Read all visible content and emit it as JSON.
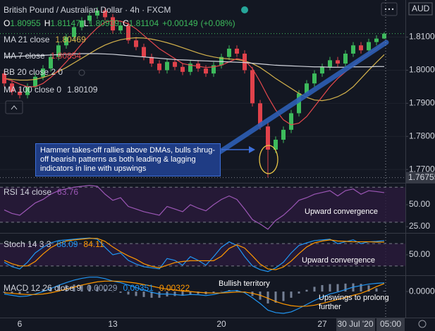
{
  "chart_data": [
    {
      "type": "candlestick",
      "title": "British Pound / Australian Dollar · 4h · FXCM",
      "currency": "AUD",
      "ohlc_labels": [
        "O",
        "H",
        "L",
        "C"
      ],
      "change": "+0.00149",
      "change_pct": "(+0.08%)",
      "hidden_indicator": "BB 20 close 2 0",
      "crosshair_date": "30 Jul '20",
      "crosshair_time": "05:00",
      "up_color": "#3dbb5c",
      "down_color": "#e0424b",
      "categories": [
        null,
        null,
        "6",
        null,
        null,
        null,
        null,
        null,
        null,
        null,
        null,
        null,
        null,
        null,
        "13",
        null,
        null,
        null,
        null,
        null,
        null,
        null,
        null,
        null,
        null,
        null,
        null,
        null,
        "20",
        null,
        null,
        null,
        null,
        null,
        null,
        null,
        null,
        null,
        null,
        null,
        null,
        "27",
        null,
        null,
        null,
        null,
        null,
        null,
        null,
        null
      ],
      "open": [
        1.799,
        1.796,
        1.7935,
        1.7925,
        1.795,
        1.798,
        1.8005,
        1.804,
        1.8075,
        1.81,
        1.813,
        1.815,
        1.8165,
        1.818,
        1.816,
        1.812,
        1.8135,
        1.809,
        1.807,
        1.804,
        1.802,
        1.8,
        1.8025,
        1.801,
        1.7995,
        1.802,
        1.8005,
        1.799,
        1.8015,
        1.804,
        1.8065,
        1.805,
        1.8,
        1.79,
        1.783,
        1.776,
        1.779,
        1.782,
        1.787,
        1.793,
        1.796,
        1.799,
        1.801,
        1.803,
        1.802,
        1.805,
        1.8075,
        1.806,
        1.8085,
        1.80955
      ],
      "high": [
        1.8,
        1.797,
        1.7945,
        1.796,
        1.799,
        1.8015,
        1.805,
        1.8085,
        1.811,
        1.814,
        1.816,
        1.8175,
        1.819,
        1.819,
        1.817,
        1.8145,
        1.8145,
        1.81,
        1.808,
        1.805,
        1.803,
        1.8035,
        1.8035,
        1.802,
        1.803,
        1.803,
        1.8015,
        1.8025,
        1.805,
        1.8075,
        1.8075,
        1.806,
        1.801,
        1.791,
        1.7845,
        1.78,
        1.783,
        1.788,
        1.794,
        1.797,
        1.8,
        1.802,
        1.804,
        1.804,
        1.806,
        1.8085,
        1.8085,
        1.8095,
        1.81055,
        1.81147
      ],
      "low": [
        1.795,
        1.7925,
        1.7915,
        1.7915,
        1.794,
        1.797,
        1.7995,
        1.803,
        1.8065,
        1.809,
        1.812,
        1.814,
        1.8155,
        1.815,
        1.811,
        1.811,
        1.808,
        1.806,
        1.803,
        1.801,
        1.799,
        1.799,
        1.8,
        1.7985,
        1.7985,
        1.7995,
        1.798,
        1.798,
        1.8005,
        1.803,
        1.804,
        1.799,
        1.789,
        1.782,
        1.76755,
        1.775,
        1.778,
        1.781,
        1.786,
        1.792,
        1.795,
        1.798,
        1.8,
        1.801,
        1.801,
        1.804,
        1.805,
        1.805,
        1.8075,
        1.80939
      ],
      "close": [
        1.796,
        1.7935,
        1.7925,
        1.795,
        1.798,
        1.8005,
        1.804,
        1.8075,
        1.81,
        1.813,
        1.815,
        1.8165,
        1.818,
        1.816,
        1.812,
        1.8135,
        1.809,
        1.807,
        1.804,
        1.802,
        1.8,
        1.8025,
        1.801,
        1.7995,
        1.802,
        1.8005,
        1.799,
        1.8015,
        1.804,
        1.8065,
        1.805,
        1.8,
        1.79,
        1.783,
        1.776,
        1.779,
        1.782,
        1.787,
        1.793,
        1.796,
        1.799,
        1.801,
        1.803,
        1.802,
        1.805,
        1.8075,
        1.806,
        1.8085,
        1.80955,
        1.81104
      ],
      "series": [
        {
          "name": "MA 21 close",
          "color": "#d4b24c",
          "values": [
            1.7975,
            1.7972,
            1.797,
            1.797,
            1.7972,
            1.7978,
            1.7986,
            1.7996,
            1.8008,
            1.8022,
            1.8036,
            1.805,
            1.8064,
            1.8076,
            1.8085,
            1.8092,
            1.8096,
            1.8098,
            1.8097,
            1.8094,
            1.8089,
            1.8083,
            1.8076,
            1.8068,
            1.806,
            1.8052,
            1.8045,
            1.804,
            1.8036,
            1.8034,
            1.8032,
            1.8028,
            1.802,
            1.8008,
            1.7992,
            1.7975,
            1.796,
            1.7945,
            1.793,
            1.7918,
            1.791,
            1.7908,
            1.7912,
            1.792,
            1.7932,
            1.795,
            1.7975,
            1.8,
            1.8024,
            1.80469
          ]
        },
        {
          "name": "MA 7 close",
          "color": "#e5484d",
          "values": [
            1.7975,
            1.7968,
            1.7958,
            1.795,
            1.795,
            1.796,
            1.7978,
            1.8,
            1.8025,
            1.8052,
            1.808,
            1.8105,
            1.8128,
            1.8145,
            1.815,
            1.8148,
            1.814,
            1.8125,
            1.8105,
            1.8085,
            1.8065,
            1.805,
            1.8035,
            1.802,
            1.8015,
            1.8012,
            1.8008,
            1.801,
            1.8015,
            1.8025,
            1.8035,
            1.803,
            1.8005,
            1.7965,
            1.792,
            1.788,
            1.785,
            1.7835,
            1.784,
            1.786,
            1.789,
            1.792,
            1.795,
            1.7975,
            1.7995,
            1.8015,
            1.8035,
            1.805,
            1.8065,
            1.80854
          ]
        },
        {
          "name": "MA 100 close 0",
          "color": "#d1d4dc",
          "values": [
            1.804,
            1.8041,
            1.8042,
            1.8043,
            1.8044,
            1.8045,
            1.8046,
            1.8047,
            1.8048,
            1.8049,
            1.805,
            1.805,
            1.805,
            1.8049,
            1.8048,
            1.8046,
            1.8044,
            1.8042,
            1.804,
            1.8038,
            1.8036,
            1.8034,
            1.8032,
            1.8031,
            1.803,
            1.8029,
            1.8028,
            1.8027,
            1.8026,
            1.8025,
            1.8024,
            1.8023,
            1.8021,
            1.8019,
            1.8017,
            1.8015,
            1.8014,
            1.8013,
            1.8012,
            1.8011,
            1.801,
            1.801,
            1.8009,
            1.8009,
            1.8009,
            1.801,
            1.801,
            1.801,
            1.8011,
            1.80109
          ]
        }
      ],
      "ylim": [
        1.7662,
        1.8212
      ],
      "yticks": [
        {
          "value": 1.77,
          "label": "1.77000"
        },
        {
          "value": 1.78,
          "label": "1.78000"
        },
        {
          "value": 1.79,
          "label": "1.79000"
        },
        {
          "value": 1.8,
          "label": "1.80000"
        },
        {
          "value": 1.81,
          "label": "1.81000"
        }
      ],
      "grid": true,
      "annotations": [
        "Hammer takes-off rallies above DMAs, bulls shrug-off bearish patterns as both leading & lagging indicators in line with upswings"
      ]
    },
    {
      "type": "line",
      "title": "RSI 14 close",
      "series": [
        {
          "color": "#9c57b6",
          "values": [
            44,
            40,
            38,
            45,
            52,
            56,
            62,
            66,
            68,
            70,
            71,
            72,
            71,
            62,
            55,
            58,
            48,
            45,
            42,
            40,
            38,
            48,
            45,
            42,
            50,
            46,
            43,
            50,
            56,
            60,
            56,
            45,
            33,
            28,
            22,
            32,
            38,
            46,
            55,
            58,
            62,
            64,
            66,
            60,
            66,
            68,
            62,
            66,
            65,
            63.76
          ]
        }
      ],
      "ylim": [
        19.4,
        72.6
      ],
      "yticks": [
        {
          "value": 50,
          "label": "50.00"
        },
        {
          "value": 25,
          "label": "25.00"
        }
      ],
      "bands": [
        30,
        70
      ],
      "annotations": [
        "Upward convergence"
      ]
    },
    {
      "type": "line",
      "title": "Stoch 14 3 3",
      "series": [
        {
          "color": "#2196f3",
          "values": [
            30,
            18,
            12,
            30,
            55,
            70,
            82,
            88,
            90,
            92,
            94,
            95,
            92,
            70,
            50,
            55,
            35,
            25,
            18,
            15,
            12,
            40,
            35,
            22,
            45,
            35,
            22,
            45,
            70,
            85,
            75,
            45,
            20,
            10,
            5,
            15,
            30,
            55,
            75,
            82,
            88,
            90,
            92,
            80,
            85,
            90,
            80,
            85,
            86,
            88.09
          ]
        },
        {
          "color": "#ff9800",
          "values": [
            35,
            26,
            20,
            20,
            32,
            52,
            69,
            80,
            87,
            90,
            92,
            94,
            94,
            86,
            71,
            58,
            47,
            38,
            26,
            19,
            15,
            22,
            29,
            32,
            34,
            34,
            34,
            34,
            46,
            67,
            77,
            68,
            47,
            25,
            12,
            10,
            17,
            33,
            53,
            71,
            82,
            87,
            90,
            87,
            86,
            85,
            85,
            85,
            84,
            84.11
          ]
        }
      ],
      "ylim": [
        -5,
        105
      ],
      "yticks": [
        {
          "value": 50,
          "label": "50.00"
        }
      ],
      "bands": [
        20,
        80
      ],
      "annotations": [
        "Upward convergence"
      ]
    },
    {
      "type": "line",
      "title": "MACD 12 26 close 9",
      "series": [
        {
          "color": "#8f9bb3",
          "style": "bar",
          "values": [
            -0.0005,
            -0.0008,
            -0.001,
            -0.0006,
            0.0002,
            0.001,
            0.0017,
            0.0023,
            0.0026,
            0.0028,
            0.0027,
            0.0025,
            0.0019,
            0.001,
            0.0,
            -0.0005,
            -0.0012,
            -0.0018,
            -0.0022,
            -0.0025,
            -0.0025,
            -0.002,
            -0.0018,
            -0.0017,
            -0.0012,
            -0.001,
            -0.0011,
            -0.0006,
            0.0001,
            0.0006,
            0.0006,
            -0.0003,
            -0.0018,
            -0.0033,
            -0.0048,
            -0.0045,
            -0.0038,
            -0.0025,
            -0.0008,
            0.0007,
            0.0019,
            0.0026,
            0.003,
            0.003,
            0.0032,
            0.0033,
            0.0031,
            0.0025,
            0.0013,
            0.00029
          ]
        },
        {
          "color": "#2196f3",
          "values": [
            -0.001,
            -0.0015,
            -0.002,
            -0.0018,
            -0.001,
            0.0,
            0.0012,
            0.0025,
            0.0036,
            0.0046,
            0.0053,
            0.0058,
            0.0058,
            0.0052,
            0.0042,
            0.0036,
            0.0026,
            0.0016,
            0.0006,
            -0.0003,
            -0.001,
            -0.001,
            -0.0012,
            -0.0015,
            -0.0012,
            -0.0013,
            -0.0016,
            -0.0012,
            -0.0005,
            0.0002,
            0.0004,
            -0.0005,
            -0.0025,
            -0.0048,
            -0.0075,
            -0.0085,
            -0.0088,
            -0.0082,
            -0.0068,
            -0.0052,
            -0.0036,
            -0.0022,
            -0.001,
            -0.0002,
            0.0008,
            0.0018,
            0.0024,
            0.003,
            0.0033,
            0.00351
          ]
        },
        {
          "color": "#ff9800",
          "values": [
            -0.0005,
            -0.0007,
            -0.001,
            -0.0012,
            -0.0012,
            -0.001,
            -0.0005,
            0.0002,
            0.001,
            0.0018,
            0.0026,
            0.0033,
            0.0039,
            0.0042,
            0.0042,
            0.0041,
            0.0038,
            0.0034,
            0.0028,
            0.0022,
            0.0015,
            0.001,
            0.0006,
            0.0002,
            0.0,
            -0.0003,
            -0.0005,
            -0.0006,
            -0.0006,
            -0.0004,
            -0.0002,
            -0.0002,
            -0.0007,
            -0.0015,
            -0.0027,
            -0.004,
            -0.005,
            -0.0057,
            -0.006,
            -0.0059,
            -0.0055,
            -0.0048,
            -0.004,
            -0.0032,
            -0.0024,
            -0.0015,
            -0.0007,
            0.0005,
            0.002,
            0.00322
          ]
        }
      ],
      "ylim": [
        -0.0105,
        0.006
      ],
      "yticks": [
        {
          "value": 0,
          "label": "0.00000"
        }
      ],
      "annotations": [
        "Bullish territory",
        "Upswings to prolong further"
      ]
    }
  ]
}
